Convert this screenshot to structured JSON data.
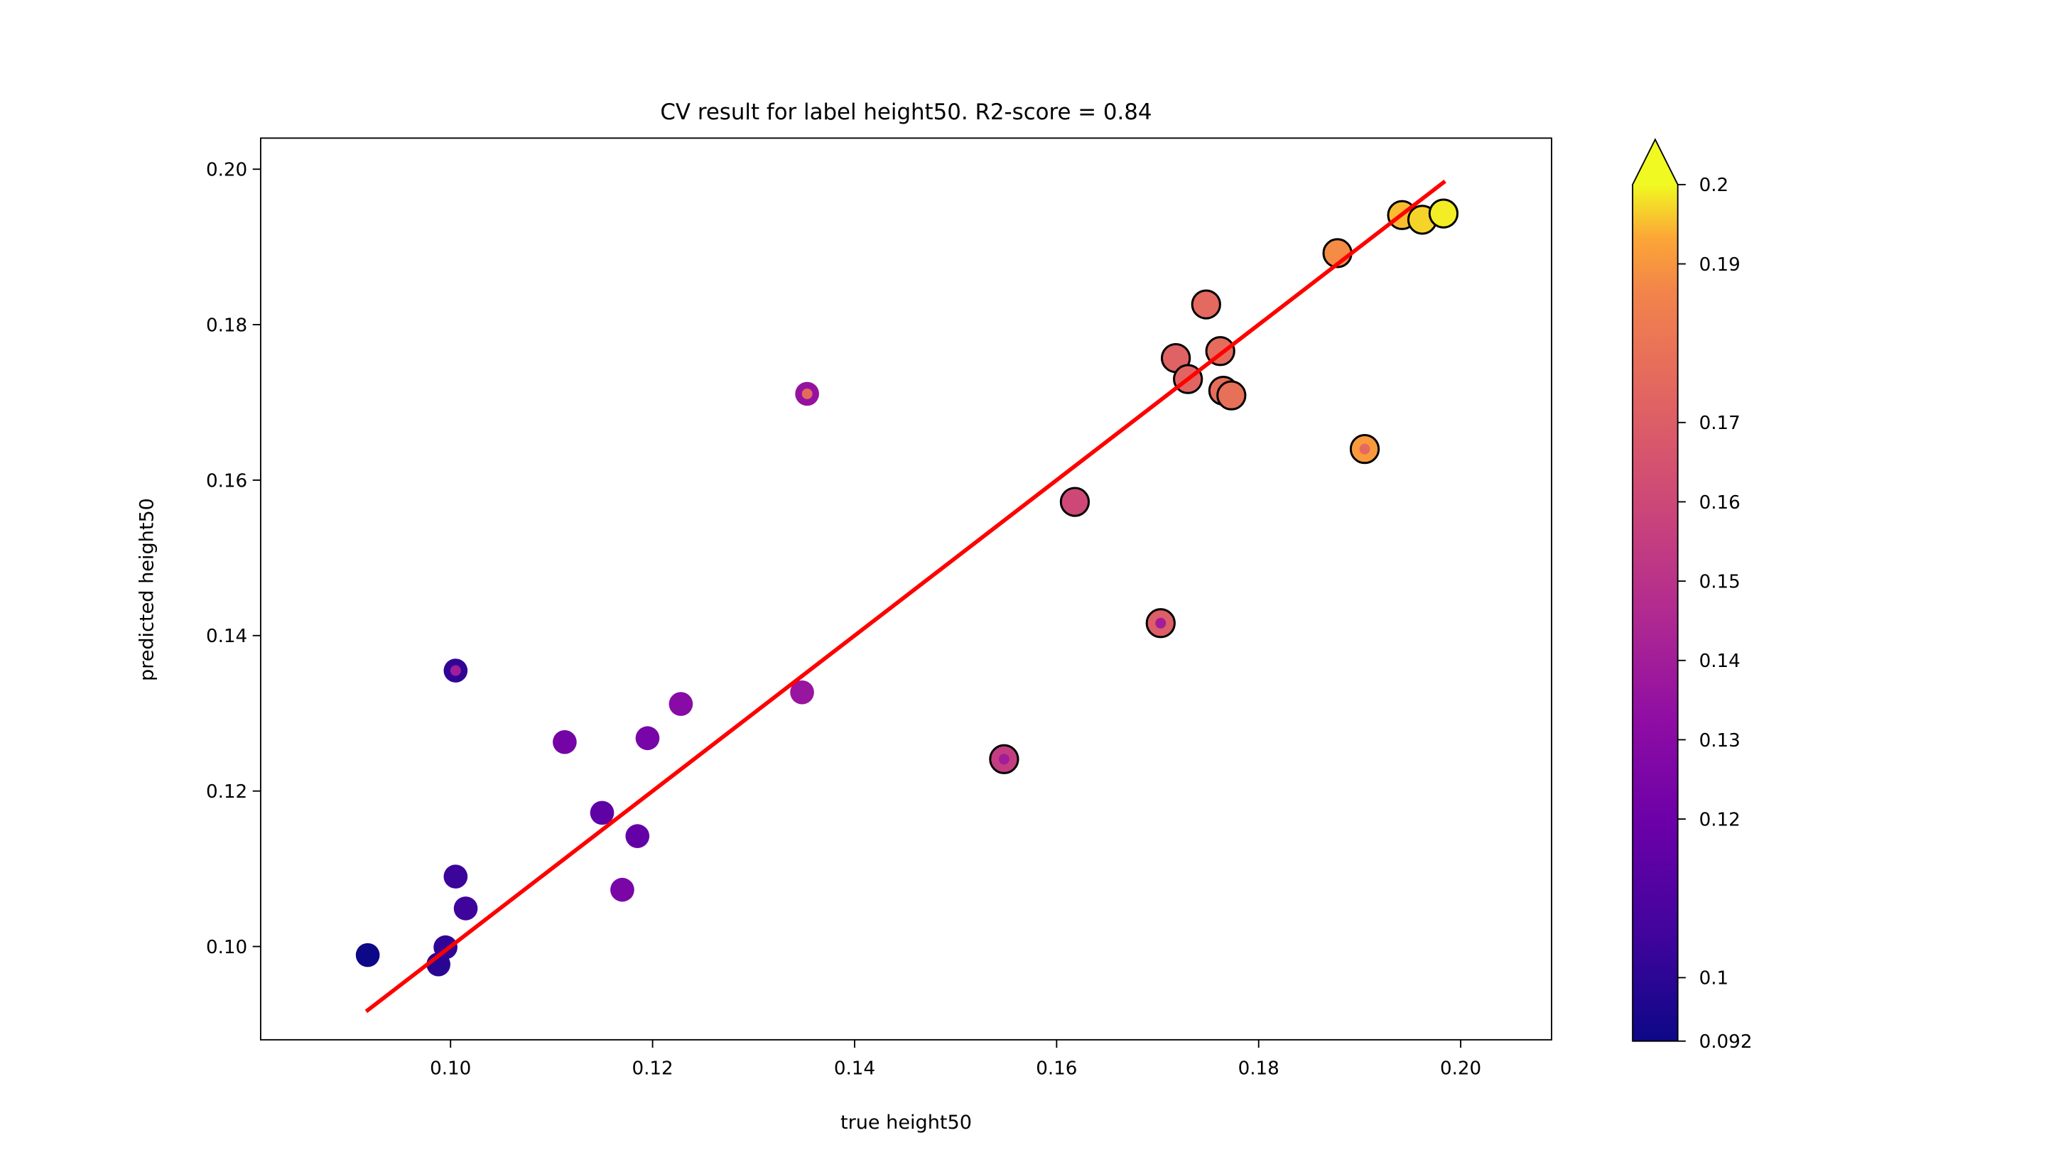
{
  "chart_data": {
    "type": "scatter",
    "title": "CV result for label height50. R2-score = 0.84",
    "xlabel": "true height50",
    "ylabel": "predicted height50",
    "xlim": [
      0.0812,
      0.209
    ],
    "ylim": [
      0.088,
      0.204
    ],
    "x_ticks": [
      "0.10",
      "0.12",
      "0.14",
      "0.16",
      "0.18",
      "0.20"
    ],
    "x_tick_values": [
      0.1,
      0.12,
      0.14,
      0.16,
      0.18,
      0.2
    ],
    "y_ticks": [
      "0.10",
      "0.12",
      "0.14",
      "0.16",
      "0.18",
      "0.20"
    ],
    "y_tick_values": [
      0.1,
      0.12,
      0.14,
      0.16,
      0.18,
      0.2
    ],
    "grid": false,
    "fit_line": {
      "color": "#ff0000",
      "x": [
        0.0918,
        0.1983
      ],
      "y": [
        0.0918,
        0.1983
      ]
    },
    "colorbar": {
      "colormap": "plasma",
      "min": 0.092,
      "max": 0.2,
      "extend": "max",
      "tick_labels": [
        "0.092",
        "0.1",
        "0.12",
        "0.13",
        "0.14",
        "0.15",
        "0.16",
        "0.17",
        "0.19",
        "0.2"
      ],
      "tick_values": [
        0.092,
        0.1,
        0.12,
        0.13,
        0.14,
        0.15,
        0.16,
        0.17,
        0.19,
        0.2
      ]
    },
    "points": [
      {
        "x": 0.0918,
        "y": 0.0989,
        "c": 0.092,
        "outlined": false
      },
      {
        "x": 0.0988,
        "y": 0.0977,
        "c": 0.099,
        "outlined": false
      },
      {
        "x": 0.0995,
        "y": 0.0999,
        "c": 0.101,
        "outlined": false
      },
      {
        "x": 0.1005,
        "y": 0.109,
        "c": 0.104,
        "outlined": false
      },
      {
        "x": 0.1015,
        "y": 0.1049,
        "c": 0.105,
        "outlined": false
      },
      {
        "x": 0.1005,
        "y": 0.1355,
        "c": 0.101,
        "outlined": false,
        "inner": 0.14
      },
      {
        "x": 0.1113,
        "y": 0.1263,
        "c": 0.123,
        "outlined": false
      },
      {
        "x": 0.115,
        "y": 0.1172,
        "c": 0.115,
        "outlined": false
      },
      {
        "x": 0.1185,
        "y": 0.1142,
        "c": 0.117,
        "outlined": false
      },
      {
        "x": 0.117,
        "y": 0.1073,
        "c": 0.125,
        "outlined": false
      },
      {
        "x": 0.1195,
        "y": 0.1268,
        "c": 0.124,
        "outlined": false
      },
      {
        "x": 0.1228,
        "y": 0.1312,
        "c": 0.13,
        "outlined": false
      },
      {
        "x": 0.1348,
        "y": 0.1327,
        "c": 0.136,
        "outlined": false
      },
      {
        "x": 0.1353,
        "y": 0.1711,
        "c": 0.135,
        "outlined": false,
        "inner": 0.175
      },
      {
        "x": 0.1548,
        "y": 0.1241,
        "c": 0.155,
        "outlined": true,
        "inner": 0.14
      },
      {
        "x": 0.1618,
        "y": 0.1572,
        "c": 0.16,
        "outlined": true
      },
      {
        "x": 0.1703,
        "y": 0.1416,
        "c": 0.17,
        "outlined": true,
        "inner": 0.14
      },
      {
        "x": 0.1718,
        "y": 0.1757,
        "c": 0.172,
        "outlined": true
      },
      {
        "x": 0.173,
        "y": 0.173,
        "c": 0.173,
        "outlined": true
      },
      {
        "x": 0.1748,
        "y": 0.1826,
        "c": 0.175,
        "outlined": true
      },
      {
        "x": 0.1762,
        "y": 0.1766,
        "c": 0.176,
        "outlined": true
      },
      {
        "x": 0.1765,
        "y": 0.1715,
        "c": 0.177,
        "outlined": true
      },
      {
        "x": 0.1773,
        "y": 0.1709,
        "c": 0.178,
        "outlined": true
      },
      {
        "x": 0.1878,
        "y": 0.1892,
        "c": 0.188,
        "outlined": true
      },
      {
        "x": 0.1905,
        "y": 0.164,
        "c": 0.191,
        "outlined": true,
        "inner": 0.175
      },
      {
        "x": 0.1942,
        "y": 0.1941,
        "c": 0.195,
        "outlined": true
      },
      {
        "x": 0.1962,
        "y": 0.1935,
        "c": 0.197,
        "outlined": true
      },
      {
        "x": 0.1983,
        "y": 0.1943,
        "c": 0.199,
        "outlined": true
      }
    ]
  }
}
